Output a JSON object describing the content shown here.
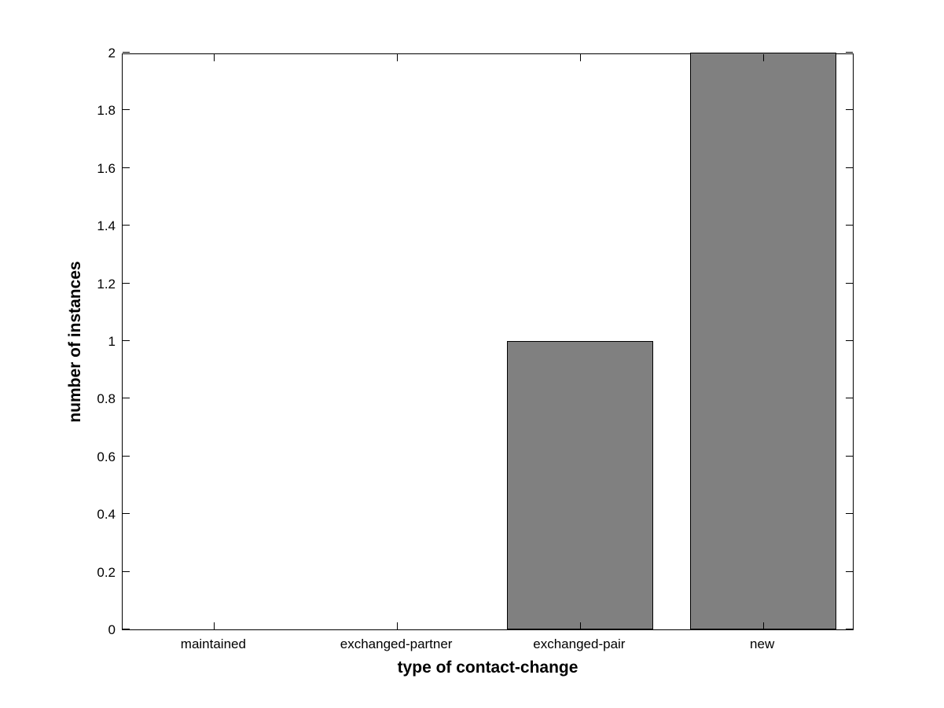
{
  "figure": {
    "background": "#ffffff"
  },
  "chart_data": {
    "type": "bar",
    "categories": [
      "maintained",
      "exchanged-partner",
      "exchanged-pair",
      "new"
    ],
    "values": [
      0,
      0,
      1,
      2
    ],
    "title": "",
    "xlabel": "type of contact-change",
    "ylabel": "number of instances",
    "xlim": [
      0.5,
      4.5
    ],
    "ylim": [
      0,
      2
    ],
    "yticks": [
      0,
      0.2,
      0.4,
      0.6,
      0.8,
      1,
      1.2,
      1.4,
      1.6,
      1.8,
      2
    ],
    "ytick_labels": [
      "0",
      "0.2",
      "0.4",
      "0.6",
      "0.8",
      "1",
      "1.2",
      "1.4",
      "1.6",
      "1.8",
      "2"
    ],
    "bar_width_fraction": 0.8,
    "bar_color": "#808080",
    "bar_edge_color": "#000000",
    "axis_color": "#000000",
    "grid": false,
    "legend": null,
    "box": true,
    "tick_direction": "in"
  }
}
